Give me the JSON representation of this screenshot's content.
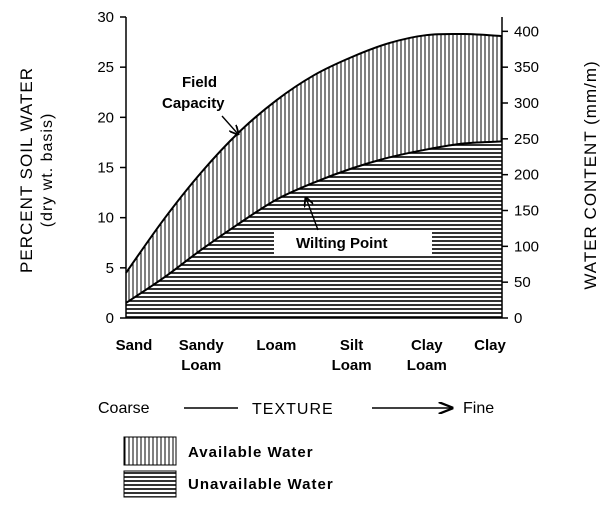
{
  "chart_data": {
    "type": "area",
    "categories": [
      "Sand",
      "Sandy Loam",
      "Loam",
      "Silt Loam",
      "Clay Loam",
      "Clay"
    ],
    "category_lines": [
      [
        "Sand"
      ],
      [
        "Sandy",
        "Loam"
      ],
      [
        "Loam"
      ],
      [
        "Silt",
        "Loam"
      ],
      [
        "Clay",
        "Loam"
      ],
      [
        "Clay"
      ]
    ],
    "series": [
      {
        "name": "Field Capacity",
        "x": [
          0,
          0.5,
          1,
          1.5,
          2,
          2.5,
          3,
          3.5,
          4,
          4.5,
          5
        ],
        "values": [
          4.5,
          9.8,
          14.5,
          18.5,
          21.7,
          24.2,
          26.0,
          27.4,
          28.2,
          28.3,
          28.1
        ]
      },
      {
        "name": "Wilting Point",
        "x": [
          0,
          0.5,
          1,
          1.5,
          2,
          2.5,
          3,
          3.5,
          4,
          4.5,
          5
        ],
        "values": [
          1.5,
          4.0,
          6.8,
          9.4,
          11.8,
          13.5,
          14.9,
          16.0,
          16.8,
          17.4,
          17.6
        ]
      }
    ],
    "ylabel": [
      "PERCENT SOIL WATER",
      "(dry wt. basis)"
    ],
    "y2label": "WATER CONTENT (mm/m)",
    "ylim": [
      0,
      30
    ],
    "y_ticks": [
      0,
      5,
      10,
      15,
      20,
      25,
      30
    ],
    "y2lim": [
      0,
      420
    ],
    "y2_ticks": [
      0,
      50,
      100,
      150,
      200,
      250,
      300,
      350,
      400
    ],
    "annotations": {
      "field_capacity": [
        "Field",
        "Capacity"
      ],
      "wilting_point": "Wilting Point"
    },
    "texture": {
      "left": "Coarse",
      "center": "TEXTURE",
      "right": "Fine"
    },
    "legend": [
      {
        "label": "Available Water",
        "pattern": "vertical-hatch"
      },
      {
        "label": "Unavailable Water",
        "pattern": "horizontal-hatch"
      }
    ],
    "grid": false
  }
}
